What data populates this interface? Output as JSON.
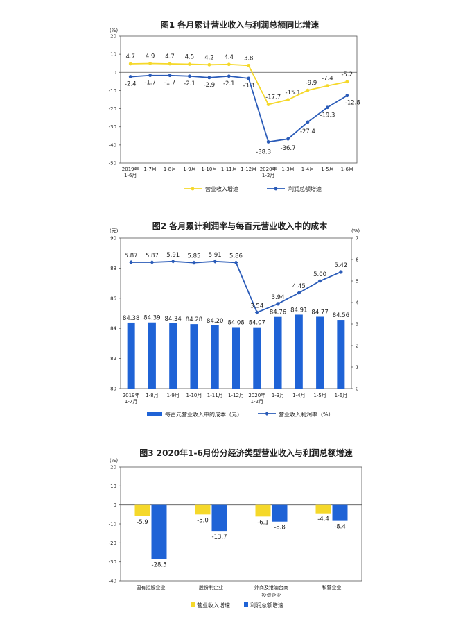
{
  "colors": {
    "yellow": "#f5d82a",
    "blue": "#2a5bb8",
    "bar_blue": "#1f63d6",
    "axis": "#555555"
  },
  "chart_data": [
    {
      "type": "line",
      "title": "图1  各月累计营业收入与利润总额同比增速",
      "y_unit": "(%)",
      "ylim": [
        -50,
        20
      ],
      "y_ticks": [
        "20",
        "10",
        "0",
        "-10",
        "-20",
        "-30",
        "-40",
        "-50"
      ],
      "categories": [
        [
          "2019年",
          "1-6月"
        ],
        [
          "1-7月"
        ],
        [
          "1-8月"
        ],
        [
          "1-9月"
        ],
        [
          "1-10月"
        ],
        [
          "1-11月"
        ],
        [
          "1-12月"
        ],
        [
          "2020年",
          "1-2月"
        ],
        [
          "1-3月"
        ],
        [
          "1-4月"
        ],
        [
          "1-5月"
        ],
        [
          "1-6月"
        ]
      ],
      "series": [
        {
          "name": "营业收入增速",
          "color": "#f5d82a",
          "values": [
            4.7,
            4.9,
            4.7,
            4.5,
            4.2,
            4.4,
            3.8,
            -17.7,
            -15.1,
            -9.9,
            -7.4,
            -5.2
          ],
          "labels": [
            "4.7",
            "4.9",
            "4.7",
            "4.5",
            "4.2",
            "4.4",
            "3.8",
            "-17.7",
            "-15.1",
            "-9.9",
            "-7.4",
            "-5.2"
          ]
        },
        {
          "name": "利润总额增速",
          "color": "#2a5bb8",
          "values": [
            -2.4,
            -1.7,
            -1.7,
            -2.1,
            -2.9,
            -2.1,
            -3.3,
            -38.3,
            -36.7,
            -27.4,
            -19.3,
            -12.8
          ],
          "labels": [
            "-2.4",
            "-1.7",
            "-1.7",
            "-2.1",
            "-2.9",
            "-2.1",
            "-3.3",
            "-38.3",
            "-36.7",
            "-27.4",
            "-19.3",
            "-12.8"
          ]
        }
      ]
    },
    {
      "type": "bar+line",
      "title": "图2  各月累计利润率与每百元营业收入中的成本",
      "y_left_unit": "(元)",
      "y_right_unit": "(%)",
      "ylim_left": [
        80,
        90
      ],
      "ylim_right": [
        0,
        7
      ],
      "y_ticks_left": [
        "90",
        "88",
        "86",
        "84",
        "82",
        "80"
      ],
      "y_ticks_right": [
        "7",
        "6",
        "5",
        "4",
        "3",
        "2",
        "1",
        "0"
      ],
      "categories": [
        [
          "2019年",
          "1-7月"
        ],
        [
          "1-8月"
        ],
        [
          "1-9月"
        ],
        [
          "1-10月"
        ],
        [
          "1-11月"
        ],
        [
          "1-12月"
        ],
        [
          "2020年",
          "1-2月"
        ],
        [
          "1-3月"
        ],
        [
          "1-4月"
        ],
        [
          "1-5月"
        ],
        [
          "1-6月"
        ]
      ],
      "bars": {
        "name": "每百元营业收入中的成本（元）",
        "color": "#1f63d6",
        "values": [
          84.38,
          84.39,
          84.34,
          84.28,
          84.2,
          84.08,
          84.07,
          84.76,
          84.91,
          84.77,
          84.56
        ],
        "labels": [
          "84.38",
          "84.39",
          "84.34",
          "84.28",
          "84.20",
          "84.08",
          "84.07",
          "84.76",
          "84.91",
          "84.77",
          "84.56"
        ]
      },
      "line": {
        "name": "营业收入利润率（%）",
        "color": "#2a5bb8",
        "values": [
          5.87,
          5.87,
          5.91,
          5.85,
          5.91,
          5.86,
          3.54,
          3.94,
          4.45,
          5.0,
          5.42
        ],
        "labels": [
          "5.87",
          "5.87",
          "5.91",
          "5.85",
          "5.91",
          "5.86",
          "3.54",
          "3.94",
          "4.45",
          "5.00",
          "5.42"
        ]
      }
    },
    {
      "type": "bar",
      "title": "图3  2020年1-6月份分经济类型营业收入与利润总额增速",
      "y_unit": "(%)",
      "ylim": [
        -40,
        20
      ],
      "y_ticks": [
        "20",
        "10",
        "0",
        "-10",
        "-20",
        "-30",
        "-40"
      ],
      "categories": [
        [
          "国有控股企业"
        ],
        [
          "股份制企业"
        ],
        [
          "外商及港澳台商",
          "投资企业"
        ],
        [
          "私营企业"
        ]
      ],
      "series": [
        {
          "name": "营业收入增速",
          "color": "#f5d82a",
          "values": [
            -5.9,
            -5.0,
            -6.1,
            -4.4
          ],
          "labels": [
            "-5.9",
            "-5.0",
            "-6.1",
            "-4.4"
          ]
        },
        {
          "name": "利润总额增速",
          "color": "#1f63d6",
          "values": [
            -28.5,
            -13.7,
            -8.8,
            -8.4
          ],
          "labels": [
            "-28.5",
            "-13.7",
            "-8.8",
            "-8.4"
          ]
        }
      ]
    }
  ]
}
